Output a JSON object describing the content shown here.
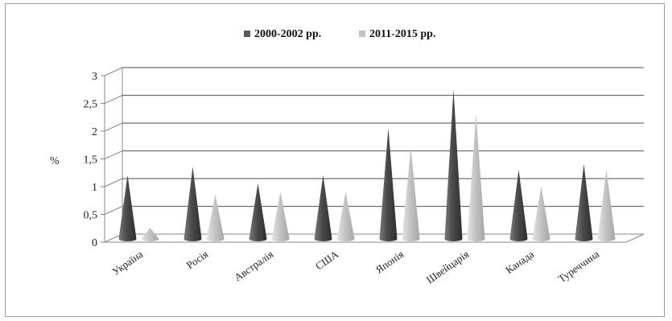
{
  "chart_data": {
    "type": "bar",
    "subtype": "3d-cone",
    "ylabel": "%",
    "ylim": [
      0,
      3
    ],
    "yticks": [
      "0",
      "0,5",
      "1",
      "1,5",
      "2",
      "2,5",
      "3"
    ],
    "yticks_values": [
      0,
      0.5,
      1,
      1.5,
      2,
      2.5,
      3
    ],
    "grid": true,
    "legend_position": "top",
    "categories": [
      "Україна",
      "Росія",
      "Австралія",
      "США",
      "Японія",
      "Швейцарія",
      "Канада",
      "Туреччина"
    ],
    "series": [
      {
        "name": "2000-2002 рр.",
        "color": "#5a5a5a",
        "values": [
          1.15,
          1.3,
          1.0,
          1.15,
          2.0,
          2.7,
          1.25,
          1.35
        ]
      },
      {
        "name": "2011-2015 рр.",
        "color": "#c2c2c2",
        "values": [
          0.2,
          0.8,
          0.85,
          0.85,
          1.65,
          2.25,
          0.95,
          1.25
        ]
      }
    ]
  }
}
